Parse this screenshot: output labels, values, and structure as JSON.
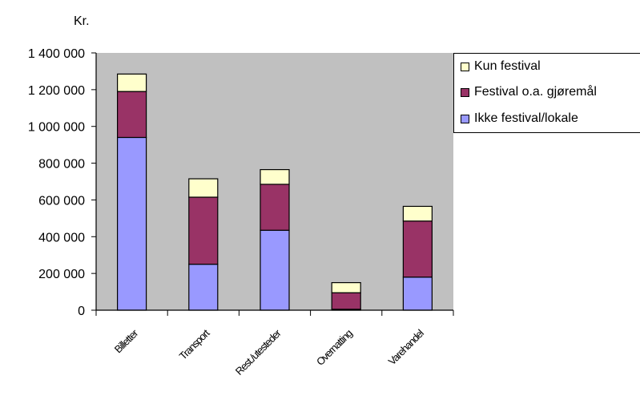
{
  "chart_data": {
    "type": "bar",
    "stacked": true,
    "unit_label": "Kr.",
    "categories": [
      "Billetter",
      "Transport",
      "Rest./utesteder",
      "Overnatting",
      "Varehandel"
    ],
    "series": [
      {
        "name": "Ikke festival/lokale",
        "color": "#9999ff",
        "values": [
          940000,
          250000,
          435000,
          5000,
          180000
        ]
      },
      {
        "name": "Festival o.a. gjøremål",
        "color": "#993366",
        "values": [
          250000,
          365000,
          250000,
          90000,
          305000
        ]
      },
      {
        "name": "Kun festival",
        "color": "#ffffcc",
        "values": [
          95000,
          100000,
          80000,
          55000,
          80000
        ]
      }
    ],
    "yticks": [
      "0",
      "200 000",
      "400 000",
      "600 000",
      "800 000",
      "1 000 000",
      "1 200 000",
      "1 400 000"
    ],
    "ylim": [
      0,
      1400000
    ],
    "grid": false,
    "legend_position": "right",
    "plot_background": "#c0c0c0"
  }
}
